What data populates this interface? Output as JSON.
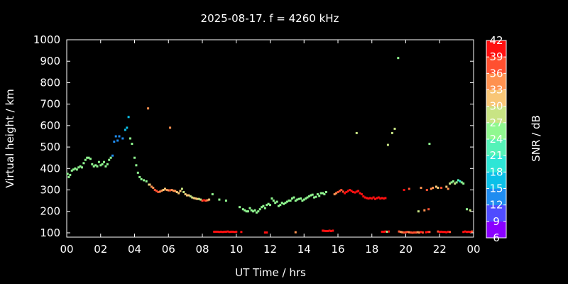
{
  "chart_data": {
    "type": "scatter",
    "title": "2025-08-17. f = 4260 kHz",
    "xlabel": "UT Time / hrs",
    "ylabel": "Virtual height / km",
    "xlim": [
      0,
      24
    ],
    "ylim": [
      80,
      1000
    ],
    "x_ticks": [
      "00",
      "02",
      "04",
      "06",
      "08",
      "10",
      "12",
      "14",
      "16",
      "18",
      "20",
      "22",
      "00"
    ],
    "y_ticks": [
      100,
      200,
      300,
      400,
      500,
      600,
      700,
      800,
      900,
      1000
    ],
    "grid": false,
    "colorbar": {
      "label": "SNR / dB",
      "ticks": [
        6,
        9,
        12,
        15,
        18,
        21,
        24,
        27,
        30,
        33,
        36,
        39,
        42
      ],
      "colors": [
        "#8a00ff",
        "#4f4cff",
        "#1f8cf0",
        "#0cc0e8",
        "#2ee6d6",
        "#55f2b8",
        "#90f890",
        "#c8e484",
        "#f8c676",
        "#ff9150",
        "#ff5030",
        "#ff1010"
      ]
    },
    "series": [
      {
        "x": [
          0.05,
          0.12,
          0.2,
          0.3,
          0.4,
          0.5,
          0.6,
          0.7,
          0.8,
          0.9,
          1.0,
          1.1,
          1.2,
          1.3,
          1.4,
          1.5,
          1.6,
          1.7,
          1.8,
          1.9,
          2.0,
          2.1,
          2.2,
          2.3,
          2.4,
          2.5,
          2.6,
          2.7,
          2.8,
          2.9,
          3.0,
          3.1,
          3.3,
          3.45,
          3.55,
          3.65,
          3.75,
          3.85,
          4.0,
          4.1,
          4.2,
          4.3,
          4.4,
          4.55,
          4.7,
          4.85
        ],
        "y": [
          375,
          360,
          370,
          390,
          395,
          400,
          395,
          405,
          410,
          405,
          425,
          440,
          450,
          450,
          445,
          420,
          410,
          415,
          410,
          430,
          415,
          420,
          430,
          410,
          420,
          440,
          450,
          460,
          525,
          550,
          530,
          550,
          540,
          580,
          590,
          640,
          540,
          515,
          450,
          415,
          380,
          360,
          350,
          345,
          340,
          325
        ],
        "snr": [
          24,
          24,
          24,
          24,
          24,
          24,
          24,
          24,
          24,
          24,
          24,
          24,
          24,
          24,
          24,
          24,
          24,
          24,
          24,
          24,
          24,
          24,
          24,
          24,
          24,
          24,
          24,
          12,
          12,
          12,
          12,
          12,
          12,
          15,
          15,
          15,
          24,
          24,
          24,
          24,
          24,
          24,
          24,
          24,
          24,
          27
        ]
      },
      {
        "x": [
          4.9,
          5.0,
          5.1,
          5.2,
          5.3,
          5.4,
          5.5,
          5.6,
          5.7,
          5.8,
          5.9,
          6.0,
          6.1,
          6.2,
          6.3,
          6.4,
          6.5,
          6.6,
          6.7,
          6.8,
          6.9,
          7.0,
          7.1,
          7.2,
          7.3,
          7.4,
          7.5,
          7.6,
          7.7,
          7.8,
          7.9,
          8.0,
          8.1,
          8.2,
          8.3,
          8.4
        ],
        "y": [
          325,
          315,
          310,
          300,
          295,
          290,
          292,
          296,
          300,
          305,
          300,
          298,
          298,
          300,
          296,
          295,
          290,
          285,
          295,
          305,
          290,
          280,
          275,
          275,
          270,
          265,
          262,
          260,
          258,
          258,
          255,
          250,
          252,
          250,
          252,
          255
        ],
        "snr": [
          30,
          33,
          33,
          36,
          36,
          36,
          33,
          33,
          30,
          30,
          33,
          33,
          36,
          33,
          33,
          33,
          30,
          30,
          30,
          27,
          27,
          30,
          30,
          30,
          27,
          27,
          30,
          30,
          30,
          27,
          27,
          36,
          39,
          36,
          33,
          30
        ]
      },
      {
        "x": [
          8.6,
          9.0,
          9.4,
          10.2,
          10.4,
          10.5,
          10.6,
          10.7,
          10.8,
          10.9,
          11.0,
          11.1,
          11.2,
          11.3,
          11.4,
          11.5,
          11.6,
          11.7,
          11.8,
          11.9,
          12.0,
          12.1,
          12.2,
          12.3,
          12.4,
          12.5,
          12.6,
          12.7,
          12.8,
          12.9,
          13.0,
          13.1,
          13.2,
          13.3,
          13.4,
          13.5,
          13.6,
          13.7,
          13.8,
          13.9,
          14.0,
          14.1,
          14.2,
          14.3,
          14.4,
          14.5,
          14.6,
          14.7,
          14.8,
          14.9,
          15.0,
          15.1,
          15.2,
          15.3
        ],
        "y": [
          280,
          255,
          250,
          220,
          210,
          205,
          200,
          200,
          215,
          205,
          200,
          205,
          195,
          200,
          210,
          220,
          225,
          215,
          230,
          235,
          230,
          260,
          250,
          240,
          245,
          225,
          230,
          240,
          235,
          240,
          245,
          250,
          250,
          260,
          265,
          250,
          255,
          258,
          260,
          250,
          255,
          260,
          265,
          270,
          275,
          278,
          265,
          268,
          280,
          272,
          285,
          285,
          280,
          290
        ],
        "snr": [
          24,
          24,
          24,
          24,
          24,
          24,
          24,
          24,
          24,
          24,
          24,
          24,
          24,
          24,
          24,
          24,
          24,
          24,
          24,
          24,
          24,
          24,
          24,
          24,
          24,
          24,
          24,
          24,
          24,
          24,
          24,
          24,
          24,
          24,
          24,
          24,
          24,
          24,
          24,
          24,
          24,
          24,
          24,
          24,
          24,
          24,
          24,
          24,
          24,
          24,
          24,
          24,
          24,
          24
        ]
      },
      {
        "x": [
          15.8,
          15.9,
          16.0,
          16.1,
          16.2,
          16.3,
          16.4,
          16.5,
          16.6,
          16.7,
          16.8,
          16.9,
          17.0,
          17.1,
          17.2,
          17.3,
          17.4,
          17.5,
          17.6,
          17.7,
          17.8,
          17.9,
          18.0,
          18.1,
          18.2,
          18.3,
          18.4,
          18.5,
          18.6,
          18.7,
          18.8
        ],
        "y": [
          280,
          285,
          290,
          295,
          300,
          292,
          285,
          290,
          295,
          300,
          295,
          290,
          288,
          292,
          295,
          285,
          280,
          270,
          265,
          262,
          260,
          262,
          260,
          265,
          258,
          262,
          265,
          260,
          262,
          260,
          262
        ],
        "snr": [
          33,
          33,
          36,
          36,
          36,
          36,
          39,
          39,
          39,
          39,
          39,
          39,
          39,
          39,
          39,
          39,
          39,
          39,
          39,
          39,
          39,
          39,
          39,
          39,
          39,
          39,
          39,
          39,
          39,
          39,
          39
        ]
      },
      {
        "x": [
          8.7,
          8.8,
          8.9,
          9.0,
          9.1,
          9.2,
          9.3,
          9.4,
          9.5,
          9.6,
          9.7,
          9.8,
          9.9,
          10.0,
          10.3,
          11.7,
          11.8,
          13.5,
          15.1,
          15.2,
          15.3,
          15.4,
          15.5,
          15.6,
          15.7,
          18.6,
          18.7,
          18.8,
          18.9,
          19.0,
          19.6,
          19.7,
          19.8,
          19.9,
          20.0,
          20.1,
          20.2,
          20.3,
          20.4,
          20.5,
          20.6,
          20.7,
          20.8,
          20.9,
          21.0,
          21.2,
          21.3,
          21.4,
          21.9,
          22.0,
          22.1,
          22.2,
          22.3,
          22.4,
          22.5,
          22.6,
          23.4,
          23.5,
          23.6,
          23.7,
          23.8,
          23.9
        ],
        "y": [
          105,
          105,
          105,
          104,
          105,
          104,
          105,
          105,
          106,
          104,
          105,
          105,
          104,
          105,
          104,
          102,
          102,
          103,
          110,
          109,
          108,
          108,
          110,
          108,
          110,
          105,
          105,
          106,
          105,
          106,
          106,
          104,
          103,
          102,
          103,
          104,
          103,
          102,
          101,
          102,
          102,
          103,
          102,
          104,
          102,
          103,
          104,
          104,
          106,
          104,
          105,
          104,
          104,
          103,
          105,
          104,
          104,
          106,
          104,
          105,
          104,
          106
        ],
        "snr": [
          39,
          39,
          39,
          39,
          39,
          39,
          39,
          39,
          39,
          39,
          39,
          39,
          39,
          39,
          39,
          39,
          39,
          33,
          39,
          39,
          39,
          39,
          39,
          39,
          39,
          39,
          39,
          39,
          24,
          39,
          36,
          33,
          33,
          36,
          36,
          36,
          33,
          36,
          36,
          36,
          36,
          33,
          33,
          39,
          36,
          39,
          39,
          36,
          36,
          39,
          39,
          39,
          39,
          39,
          39,
          36,
          39,
          39,
          39,
          39,
          39,
          36
        ]
      },
      {
        "x": [
          4.8,
          6.1,
          17.1,
          18.95,
          19.2,
          19.35,
          19.55,
          19.9,
          20.2,
          20.75,
          20.9,
          21.1,
          21.25,
          21.35,
          21.4,
          21.5,
          21.6,
          21.8,
          21.9,
          22.1,
          22.4,
          22.5,
          22.6,
          22.7,
          22.8,
          22.9,
          23.0,
          23.1,
          23.2,
          23.3,
          23.4,
          23.6,
          23.8
        ],
        "y": [
          680,
          590,
          565,
          510,
          565,
          585,
          915,
          300,
          305,
          200,
          310,
          205,
          300,
          210,
          515,
          305,
          310,
          315,
          310,
          310,
          315,
          305,
          330,
          335,
          340,
          330,
          335,
          345,
          340,
          335,
          330,
          210,
          205
        ],
        "snr": [
          33,
          33,
          27,
          27,
          27,
          27,
          24,
          39,
          36,
          27,
          33,
          33,
          36,
          36,
          24,
          33,
          33,
          30,
          30,
          36,
          30,
          33,
          27,
          24,
          24,
          27,
          24,
          21,
          18,
          24,
          24,
          24,
          27
        ]
      }
    ]
  }
}
